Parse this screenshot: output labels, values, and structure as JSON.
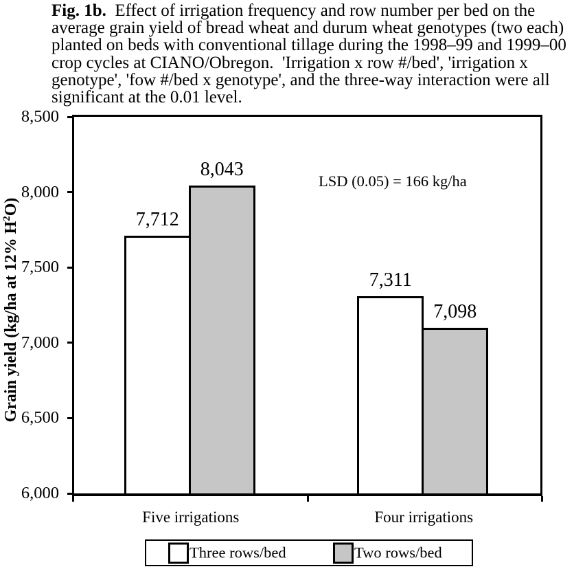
{
  "caption": {
    "label": "Fig. 1b.",
    "lines": [
      "Effect of irrigation frequency and row number per bed on the",
      "average grain yield of bread wheat and durum wheat genotypes (two each)",
      "planted on beds with conventional tillage during the 1998–99 and 1999–00",
      "crop cycles at CIANO/Obregon.  'Irrigation x row #/bed', 'irrigation x",
      "genotype', 'fow #/bed x genotype', and the three-way interaction were all",
      "significant at the 0.01 level."
    ]
  },
  "chart_data": {
    "type": "bar",
    "categories": [
      "Five irrigations",
      "Four irrigations"
    ],
    "series": [
      {
        "name": "Three rows/bed",
        "fill": "#ffffff",
        "values": [
          7712,
          7311
        ],
        "value_labels": [
          "7,712",
          "7,311"
        ]
      },
      {
        "name": "Two rows/bed",
        "fill": "#c6c6c6",
        "values": [
          8043,
          7098
        ],
        "value_labels": [
          "8,043",
          "7,098"
        ]
      }
    ],
    "ylabel": "Grain yield (kg/ha at 12% H2O)",
    "ylabel_parts": {
      "prefix": "Grain yield (kg/ha at 12% H",
      "sup": "2",
      "suffix": "O)"
    },
    "ylim": [
      6000,
      8500
    ],
    "yticks": [
      {
        "value": 6000,
        "label": "6,000"
      },
      {
        "value": 6500,
        "label": "6,500"
      },
      {
        "value": 7000,
        "label": "7,000"
      },
      {
        "value": 7500,
        "label": "7,500"
      },
      {
        "value": 8000,
        "label": "8,000"
      },
      {
        "value": 8500,
        "label": "8,500"
      }
    ],
    "annotation": "LSD (0.05) = 166 kg/ha",
    "grid": false,
    "legend_position": "bottom"
  }
}
